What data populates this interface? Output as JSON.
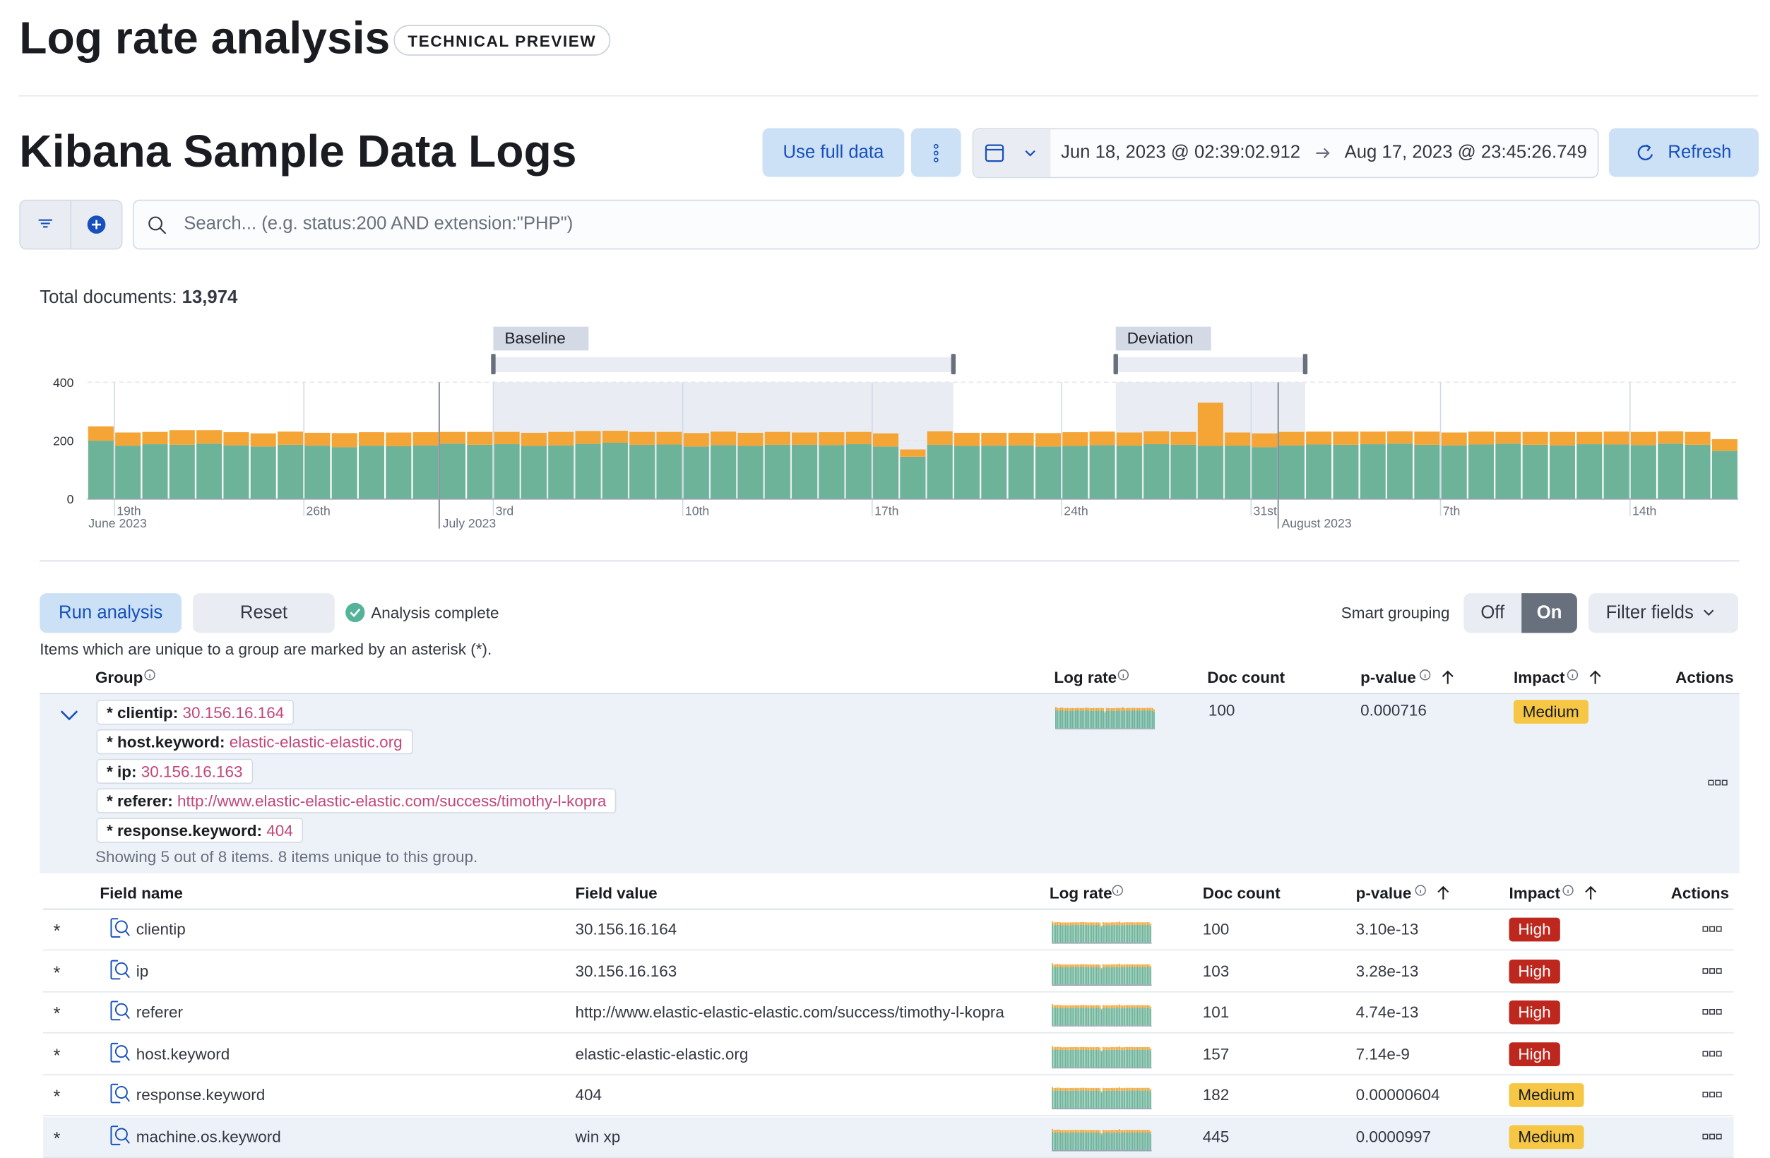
{
  "header": {
    "title": "Log rate analysis",
    "badge": "TECHNICAL PREVIEW"
  },
  "toolbar": {
    "data_view": "Kibana Sample Data Logs",
    "use_full_data": "Use full data",
    "date_start": "Jun 18, 2023 @ 02:39:02.912",
    "date_end": "Aug 17, 2023 @ 23:45:26.749",
    "refresh": "Refresh",
    "search_placeholder": "Search... (e.g. status:200 AND extension:\"PHP\")"
  },
  "total": {
    "label": "Total documents:",
    "value": "13,974"
  },
  "chart_data": {
    "type": "bar",
    "stacked": true,
    "x": [
      "2023-06-18",
      "2023-06-19",
      "2023-06-20",
      "2023-06-21",
      "2023-06-22",
      "2023-06-23",
      "2023-06-24",
      "2023-06-25",
      "2023-06-26",
      "2023-06-27",
      "2023-06-28",
      "2023-06-29",
      "2023-06-30",
      "2023-07-01",
      "2023-07-02",
      "2023-07-03",
      "2023-07-04",
      "2023-07-05",
      "2023-07-06",
      "2023-07-07",
      "2023-07-08",
      "2023-07-09",
      "2023-07-10",
      "2023-07-11",
      "2023-07-12",
      "2023-07-13",
      "2023-07-14",
      "2023-07-15",
      "2023-07-16",
      "2023-07-17",
      "2023-07-18",
      "2023-07-19",
      "2023-07-20",
      "2023-07-21",
      "2023-07-22",
      "2023-07-23",
      "2023-07-24",
      "2023-07-25",
      "2023-07-26",
      "2023-07-27",
      "2023-07-28",
      "2023-07-29",
      "2023-07-30",
      "2023-07-31",
      "2023-08-01",
      "2023-08-02",
      "2023-08-03",
      "2023-08-04",
      "2023-08-05",
      "2023-08-06",
      "2023-08-07",
      "2023-08-08",
      "2023-08-09",
      "2023-08-10",
      "2023-08-11",
      "2023-08-12",
      "2023-08-13",
      "2023-08-14",
      "2023-08-15",
      "2023-08-16",
      "2023-08-17"
    ],
    "series": [
      {
        "color": "#6db39a",
        "values": [
          200,
          183,
          188,
          186,
          190,
          184,
          180,
          186,
          183,
          178,
          183,
          181,
          184,
          190,
          186,
          188,
          182,
          184,
          189,
          193,
          186,
          187,
          180,
          185,
          182,
          186,
          186,
          185,
          188,
          180,
          145,
          186,
          182,
          183,
          184,
          180,
          182,
          185,
          183,
          188,
          186,
          182,
          183,
          178,
          184,
          187,
          186,
          188,
          190,
          186,
          184,
          187,
          190,
          186,
          184,
          188,
          187,
          185,
          190,
          186,
          165
        ]
      },
      {
        "color": "#f5a535",
        "values": [
          49,
          45,
          42,
          50,
          46,
          45,
          45,
          45,
          44,
          48,
          46,
          47,
          45,
          40,
          44,
          42,
          45,
          46,
          44,
          41,
          44,
          43,
          46,
          46,
          45,
          44,
          42,
          44,
          42,
          45,
          25,
          46,
          45,
          44,
          43,
          46,
          47,
          46,
          45,
          44,
          44,
          148,
          45,
          47,
          46,
          44,
          45,
          43,
          42,
          45,
          44,
          44,
          40,
          44,
          46,
          42,
          44,
          45,
          42,
          44,
          40
        ]
      }
    ],
    "ylim": [
      0,
      400
    ],
    "yticks": [
      0,
      200,
      400
    ],
    "grid": true,
    "xticks": [
      {
        "value": "2023-06-19",
        "label": "19th"
      },
      {
        "value": "2023-06-26",
        "label": "26th"
      },
      {
        "value": "2023-07-03",
        "label": "3rd"
      },
      {
        "value": "2023-07-10",
        "label": "10th"
      },
      {
        "value": "2023-07-17",
        "label": "17th"
      },
      {
        "value": "2023-07-24",
        "label": "24th"
      },
      {
        "value": "2023-07-31",
        "label": "31st"
      },
      {
        "value": "2023-08-07",
        "label": "7th"
      },
      {
        "value": "2023-08-14",
        "label": "14th"
      }
    ],
    "month_ticks": [
      {
        "value": "2023-06-18",
        "label": "June 2023"
      },
      {
        "value": "2023-07-01",
        "label": "July 2023"
      },
      {
        "value": "2023-08-01",
        "label": "August 2023"
      }
    ],
    "baseline": {
      "label": "Baseline",
      "range": [
        "2023-07-03",
        "2023-07-20"
      ]
    },
    "deviation": {
      "label": "Deviation",
      "range": [
        "2023-07-26",
        "2023-08-02"
      ]
    }
  },
  "analysis": {
    "run": "Run analysis",
    "reset": "Reset",
    "status": "Analysis complete",
    "smart_grouping": "Smart grouping",
    "off": "Off",
    "on": "On",
    "filter_fields": "Filter fields",
    "note": "Items which are unique to a group are marked by an asterisk (*)."
  },
  "group_table": {
    "columns": [
      "Group",
      "Log rate",
      "Doc count",
      "p-value",
      "Impact",
      "Actions"
    ],
    "row": {
      "items": [
        {
          "field": "* clientip:",
          "value": "30.156.16.164"
        },
        {
          "field": "* host.keyword:",
          "value": "elastic-elastic-elastic.org"
        },
        {
          "field": "* ip:",
          "value": "30.156.16.163"
        },
        {
          "field": "* referer:",
          "value": "http://www.elastic-elastic-elastic.com/success/timothy-l-kopra"
        },
        {
          "field": "* response.keyword:",
          "value": "404"
        }
      ],
      "summary": "Showing 5 out of 8 items. 8 items unique to this group.",
      "doc_count": 100,
      "p_value": "0.000716",
      "impact": "Medium"
    }
  },
  "field_table": {
    "columns": [
      "Field name",
      "Field value",
      "Log rate",
      "Doc count",
      "p-value",
      "Impact",
      "Actions"
    ],
    "rows": [
      {
        "marker": "*",
        "field": "clientip",
        "value": "30.156.16.164",
        "doc_count": 100,
        "p_value": "3.10e-13",
        "impact": "High"
      },
      {
        "marker": "*",
        "field": "ip",
        "value": "30.156.16.163",
        "doc_count": 103,
        "p_value": "3.28e-13",
        "impact": "High"
      },
      {
        "marker": "*",
        "field": "referer",
        "value": "http://www.elastic-elastic-elastic.com/success/timothy-l-kopra",
        "doc_count": 101,
        "p_value": "4.74e-13",
        "impact": "High"
      },
      {
        "marker": "*",
        "field": "host.keyword",
        "value": "elastic-elastic-elastic.org",
        "doc_count": 157,
        "p_value": "7.14e-9",
        "impact": "High"
      },
      {
        "marker": "*",
        "field": "response.keyword",
        "value": "404",
        "doc_count": 182,
        "p_value": "0.00000604",
        "impact": "Medium"
      },
      {
        "marker": "*",
        "field": "machine.os.keyword",
        "value": "win xp",
        "doc_count": 445,
        "p_value": "0.0000997",
        "impact": "Medium"
      }
    ]
  }
}
